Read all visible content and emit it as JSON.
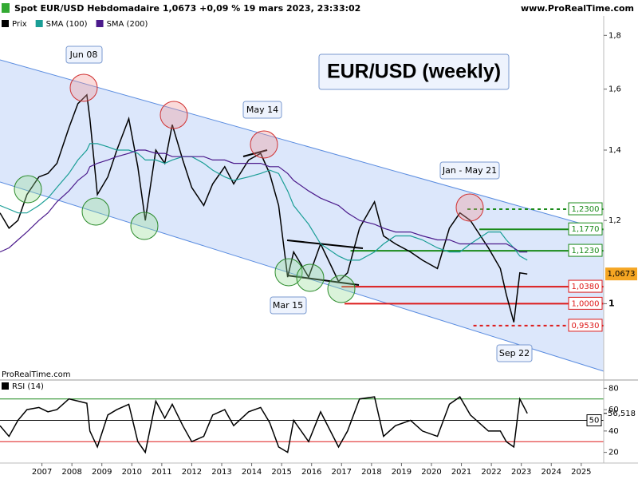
{
  "header": {
    "title": "Spot EUR/USD Hebdomadaire 1,0673 +0,09 % 19 mars 2023, 23:33:02",
    "site": "www.ProRealTime.com",
    "watermark": "ProRealTime.com"
  },
  "chart_data": [
    {
      "type": "line",
      "title": "EUR/USD (weekly)",
      "log_scale": true,
      "annotations": [
        "Jun 08",
        "May 14",
        "Mar 15",
        "Jan - May 21",
        "Sep 22"
      ],
      "x": [
        2005.6,
        2005.9,
        2006.2,
        2006.5,
        2006.9,
        2007.2,
        2007.5,
        2007.9,
        2008.2,
        2008.5,
        2008.6,
        2008.85,
        2009.2,
        2009.5,
        2009.9,
        2010.2,
        2010.45,
        2010.8,
        2011.1,
        2011.35,
        2011.7,
        2012.0,
        2012.4,
        2012.7,
        2013.1,
        2013.4,
        2013.9,
        2014.3,
        2014.6,
        2014.9,
        2015.2,
        2015.4,
        2015.9,
        2016.3,
        2016.9,
        2017.2,
        2017.6,
        2018.1,
        2018.4,
        2018.8,
        2019.3,
        2019.7,
        2020.2,
        2020.6,
        2020.95,
        2021.3,
        2021.9,
        2022.3,
        2022.5,
        2022.75,
        2022.95,
        2023.2
      ],
      "series": [
        {
          "name": "Prix",
          "color": "#000000",
          "values": [
            1.22,
            1.18,
            1.2,
            1.27,
            1.32,
            1.33,
            1.36,
            1.47,
            1.55,
            1.58,
            1.5,
            1.27,
            1.32,
            1.4,
            1.5,
            1.35,
            1.2,
            1.4,
            1.36,
            1.48,
            1.37,
            1.29,
            1.24,
            1.3,
            1.35,
            1.3,
            1.37,
            1.39,
            1.33,
            1.24,
            1.06,
            1.12,
            1.06,
            1.14,
            1.05,
            1.07,
            1.18,
            1.25,
            1.16,
            1.14,
            1.12,
            1.1,
            1.08,
            1.18,
            1.22,
            1.2,
            1.13,
            1.08,
            1.02,
            0.96,
            1.07,
            1.0673
          ]
        },
        {
          "name": "SMA (100)",
          "color": "#1a9e96",
          "values": [
            1.24,
            1.23,
            1.22,
            1.22,
            1.24,
            1.26,
            1.29,
            1.33,
            1.37,
            1.4,
            1.42,
            1.42,
            1.41,
            1.4,
            1.4,
            1.39,
            1.37,
            1.37,
            1.36,
            1.37,
            1.38,
            1.38,
            1.36,
            1.34,
            1.32,
            1.31,
            1.32,
            1.33,
            1.34,
            1.33,
            1.28,
            1.24,
            1.19,
            1.14,
            1.11,
            1.1,
            1.1,
            1.12,
            1.14,
            1.16,
            1.16,
            1.15,
            1.13,
            1.12,
            1.12,
            1.14,
            1.17,
            1.17,
            1.15,
            1.13,
            1.11,
            1.1
          ]
        },
        {
          "name": "SMA (200)",
          "color": "#4b1a8c",
          "values": [
            1.12,
            1.13,
            1.15,
            1.17,
            1.2,
            1.22,
            1.25,
            1.28,
            1.31,
            1.33,
            1.35,
            1.36,
            1.37,
            1.38,
            1.39,
            1.4,
            1.4,
            1.39,
            1.39,
            1.38,
            1.38,
            1.38,
            1.38,
            1.37,
            1.37,
            1.36,
            1.36,
            1.36,
            1.35,
            1.35,
            1.33,
            1.31,
            1.28,
            1.26,
            1.24,
            1.22,
            1.2,
            1.19,
            1.18,
            1.17,
            1.17,
            1.16,
            1.15,
            1.15,
            1.14,
            1.14,
            1.14,
            1.14,
            1.14,
            1.13,
            1.12,
            1.12
          ]
        }
      ],
      "last_price": {
        "value": 1.0673,
        "label": "1,0673"
      },
      "levels": [
        {
          "value": 1.23,
          "label": "1,2300",
          "color": "#1a8a1a",
          "dashed": true,
          "x_from": 2021.2
        },
        {
          "value": 1.177,
          "label": "1,1770",
          "color": "#1a8a1a",
          "dashed": false,
          "x_from": 2021.6
        },
        {
          "value": 1.123,
          "label": "1,1230",
          "color": "#1a8a1a",
          "dashed": false,
          "x_from": 2017.3
        },
        {
          "value": 1.038,
          "label": "1,0380",
          "color": "#dd1a1a",
          "dashed": false,
          "x_from": 2017.0
        },
        {
          "value": 1.0,
          "label": "1,0000",
          "color": "#dd1a1a",
          "dashed": false,
          "x_from": 2017.1
        },
        {
          "value": 0.953,
          "label": "0,9530",
          "color": "#dd1a1a",
          "dashed": true,
          "x_from": 2021.4
        }
      ],
      "xlim": [
        2005.6,
        2025.75
      ],
      "xticks": [
        2007,
        2008,
        2009,
        2010,
        2011,
        2012,
        2013,
        2014,
        2015,
        2016,
        2017,
        2018,
        2019,
        2020,
        2021,
        2022,
        2023,
        2024,
        2025
      ],
      "ylim": [
        0.867,
        1.918
      ],
      "yticks": [
        {
          "value": 1.8,
          "label": "1,8"
        },
        {
          "value": 1.6,
          "label": "1,6"
        },
        {
          "value": 1.4,
          "label": "1,4"
        },
        {
          "value": 1.2,
          "label": "1,2"
        },
        1
      ]
    },
    {
      "type": "line",
      "series": [
        {
          "name": "RSI (14)",
          "color": "#000000",
          "values": [
            45,
            35,
            50,
            60,
            62,
            58,
            60,
            70,
            68,
            66,
            40,
            25,
            55,
            60,
            65,
            30,
            20,
            68,
            52,
            65,
            45,
            30,
            35,
            55,
            60,
            45,
            58,
            62,
            48,
            25,
            20,
            50,
            30,
            58,
            25,
            40,
            70,
            72,
            35,
            45,
            50,
            40,
            35,
            65,
            72,
            55,
            40,
            40,
            30,
            25,
            70,
            56.518
          ]
        }
      ],
      "last_value": {
        "value": 56.518,
        "label": "56,518"
      },
      "levels": [
        {
          "value": 70,
          "color": "#1a8a1a"
        },
        {
          "value": 50,
          "color": "#000000",
          "label": 50
        },
        {
          "value": 30,
          "color": "#dd1a1a"
        }
      ],
      "ylim": [
        10,
        87
      ],
      "yticks": [
        80,
        60,
        40,
        20
      ]
    }
  ]
}
